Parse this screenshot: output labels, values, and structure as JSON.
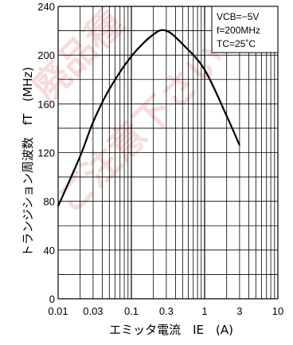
{
  "chart_data": {
    "type": "line",
    "x_scale": "log",
    "xlim": [
      0.01,
      10
    ],
    "ylim": [
      0,
      240
    ],
    "xticks": [
      "0.01",
      "0.03",
      "0.1",
      "0.3",
      "1",
      "3",
      "10"
    ],
    "yticks": [
      "0",
      "40",
      "80",
      "120",
      "160",
      "200",
      "240"
    ],
    "xlabel": "エミッタ電流　IE　(A)",
    "ylabel": "トランジション周波数　fT　(MHz)",
    "conditions": [
      "VCB=−5V",
      "f=200MHz",
      "TC=25˚C"
    ],
    "grid": true,
    "series": [
      {
        "color": "#000000",
        "x": [
          0.01,
          0.02,
          0.03,
          0.05,
          0.1,
          0.2,
          0.3,
          0.5,
          1,
          2,
          3
        ],
        "y": [
          76,
          117,
          145,
          172,
          199,
          217,
          220,
          209,
          188,
          150,
          126
        ]
      }
    ]
  },
  "watermark": {
    "text": "廃品種 ご注意下さい",
    "color": "#e06060"
  }
}
